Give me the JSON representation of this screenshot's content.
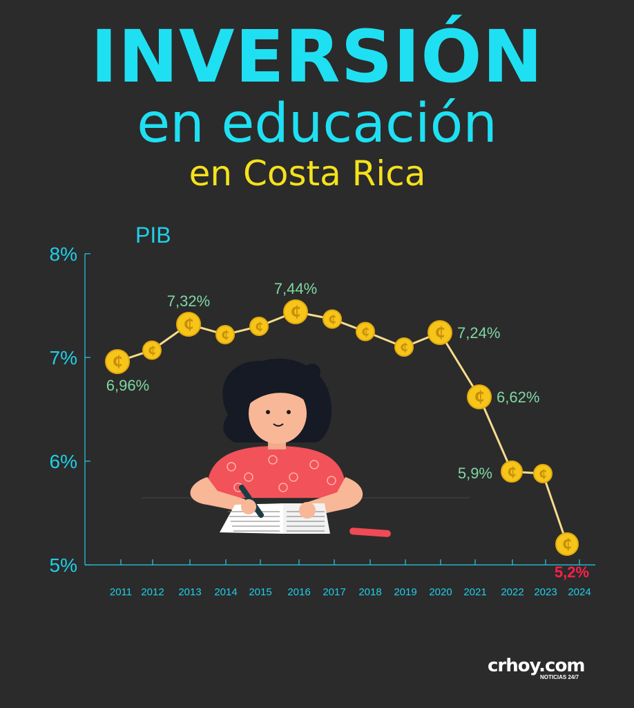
{
  "header": {
    "title": "INVERSIÓN",
    "subtitle": "en educación",
    "place": "en Costa Rica"
  },
  "chart_data": {
    "type": "line",
    "ylabel": "PIB",
    "ylim": [
      5,
      8
    ],
    "yticks": [
      "8%",
      "7%",
      "6%",
      "5%"
    ],
    "ytick_values": [
      8,
      7,
      6,
      5
    ],
    "x": [
      "2011",
      "2012",
      "2013",
      "2014",
      "2015",
      "2016",
      "2017",
      "2018",
      "2019",
      "2020",
      "2021",
      "2022",
      "2023",
      "2024"
    ],
    "values": [
      6.96,
      7.07,
      7.32,
      7.22,
      7.3,
      7.44,
      7.37,
      7.25,
      7.1,
      7.24,
      6.62,
      5.9,
      5.88,
      5.2
    ],
    "data_labels": [
      {
        "index": 0,
        "text": "6,96%",
        "placement": "below"
      },
      {
        "index": 2,
        "text": "7,32%",
        "placement": "above"
      },
      {
        "index": 5,
        "text": "7,44%",
        "placement": "above"
      },
      {
        "index": 9,
        "text": "7,24%",
        "placement": "right"
      },
      {
        "index": 10,
        "text": "6,62%",
        "placement": "right"
      },
      {
        "index": 11,
        "text": "5,9%",
        "placement": "left"
      },
      {
        "index": 13,
        "text": "5,2%",
        "placement": "below-highlight"
      }
    ],
    "grid": false,
    "marker": "coin-icon",
    "colors": {
      "line": "#f7dc8c",
      "marker": "#f6c51a",
      "label": "#7fd8a4",
      "highlight_label": "#ff1f4b",
      "axis": "#1fd0ea"
    }
  },
  "brand": {
    "name": "crhoy.com",
    "tagline": "NOTICIAS 24/7"
  }
}
